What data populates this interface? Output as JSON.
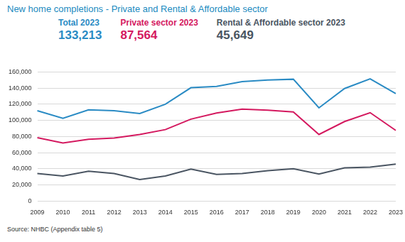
{
  "chart_data": {
    "type": "line",
    "title": "New home completions - Private and Rental & Affordable sector",
    "source": "Source: NHBC (Appendix table 5)",
    "categories": [
      "2009",
      "2010",
      "2011",
      "2012",
      "2013",
      "2014",
      "2015",
      "2016",
      "2017",
      "2018",
      "2019",
      "2020",
      "2021",
      "2022",
      "2023"
    ],
    "series": [
      {
        "name": "Total 2023",
        "color": "#2a8bc4",
        "values": [
          112000,
          102500,
          113000,
          112000,
          108500,
          120000,
          140500,
          142000,
          148000,
          150000,
          151000,
          115500,
          139500,
          151500,
          133213
        ]
      },
      {
        "name": "Private sector 2023",
        "color": "#d4195f",
        "values": [
          78500,
          72000,
          76500,
          78000,
          82500,
          88500,
          101500,
          109000,
          114000,
          112500,
          110500,
          82500,
          98500,
          109500,
          87564
        ]
      },
      {
        "name": "Rental & Affordable sector 2023",
        "color": "#4a5562",
        "values": [
          34000,
          31000,
          37000,
          34000,
          26500,
          31000,
          39500,
          33000,
          34000,
          37500,
          40000,
          33500,
          41000,
          42000,
          45649
        ]
      }
    ],
    "annotations": [
      {
        "series": "Total 2023",
        "text": "133,213"
      },
      {
        "series": "Private sector 2023",
        "text": "87,564"
      },
      {
        "series": "Rental & Affordable sector 2023",
        "text": "45,649"
      }
    ],
    "ylim": [
      0,
      160000
    ],
    "yticks": [
      0,
      {
        "value": 20000,
        "label": "20,000"
      },
      {
        "value": 40000,
        "label": "40,000"
      },
      {
        "value": 60000,
        "label": "60,000"
      },
      {
        "value": 80000,
        "label": "80,000"
      },
      {
        "value": 100000,
        "label": "100,000"
      },
      {
        "value": 120000,
        "label": "120,000"
      },
      {
        "value": 140000,
        "label": "140,000"
      },
      {
        "value": 160000,
        "label": "160,000"
      }
    ],
    "grid": true,
    "legend": "top-left"
  }
}
